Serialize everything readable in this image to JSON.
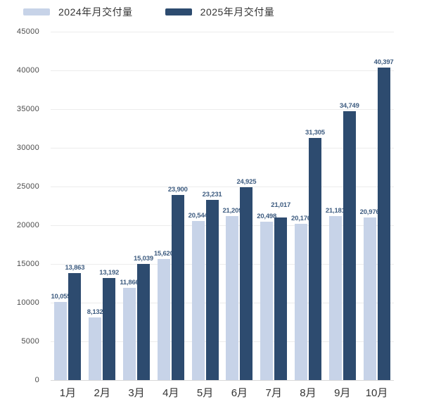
{
  "chart_data": {
    "type": "bar",
    "categories": [
      "1月",
      "2月",
      "3月",
      "4月",
      "5月",
      "6月",
      "7月",
      "8月",
      "9月",
      "10月"
    ],
    "series": [
      {
        "name": "2024年月交付量",
        "color": "#c7d3e8",
        "values": [
          10055,
          8132,
          11866,
          15620,
          20544,
          21209,
          20498,
          20176,
          21181,
          20976
        ]
      },
      {
        "name": "2025年月交付量",
        "color": "#2d4b6f",
        "values": [
          13863,
          13192,
          15039,
          23900,
          23231,
          24925,
          21017,
          31305,
          34749,
          40397
        ]
      }
    ],
    "title": "",
    "xlabel": "",
    "ylabel": "",
    "ylim": [
      0,
      45000
    ],
    "ytick_step": 5000,
    "yticks": [
      0,
      5000,
      10000,
      15000,
      20000,
      25000,
      30000,
      35000,
      40000,
      45000
    ],
    "grid": true,
    "value_labels": true,
    "legend_position": "top-left"
  },
  "colors": {
    "background": "#ffffff",
    "gridline": "#ececec",
    "zero_line": "#d8d8d8",
    "value_label_text": "#3e5c80",
    "axis_text": "#4a4a4a",
    "category_text": "#333333",
    "series_2024": "#c7d3e8",
    "series_2025": "#2d4b6f"
  }
}
